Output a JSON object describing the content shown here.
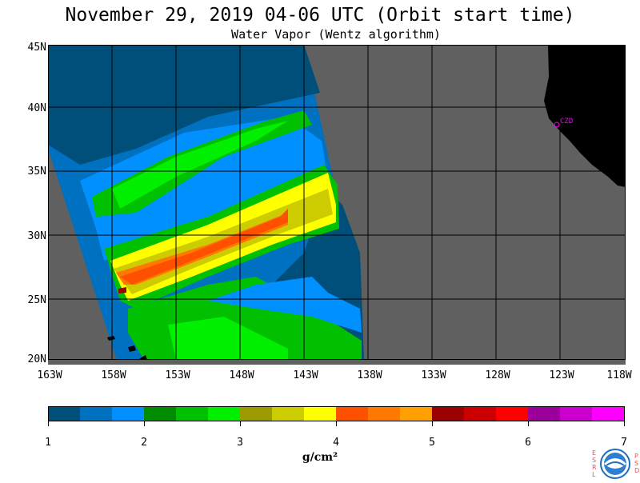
{
  "header": {
    "title": "November 29, 2019  04-06 UTC  (Orbit start time)",
    "subtitle": "Water Vapor (Wentz algorithm)"
  },
  "map": {
    "latitude_labels": [
      "45N",
      "40N",
      "35N",
      "30N",
      "25N",
      "20N"
    ],
    "longitude_labels": [
      "163W",
      "158W",
      "153W",
      "148W",
      "143W",
      "138W",
      "133W",
      "128W",
      "123W",
      "118W"
    ],
    "station_label": "CZD",
    "land_color": "#000000",
    "no_data_color": "#606060",
    "grid_color": "#000000"
  },
  "colorbar": {
    "tick_labels": [
      "1",
      "2",
      "3",
      "4",
      "5",
      "6",
      "7"
    ],
    "unit": "g/cm²",
    "colors": [
      "#004f7a",
      "#0070c0",
      "#0090ff",
      "#008c00",
      "#00c000",
      "#00f000",
      "#9c9c00",
      "#cccc00",
      "#ffff00",
      "#ff5000",
      "#ff7800",
      "#ffa000",
      "#9c0000",
      "#cc0000",
      "#ff0000",
      "#9c009c",
      "#cc00cc",
      "#ff00ff"
    ]
  },
  "logo": {
    "name": "NOAA",
    "left_letters": [
      "E",
      "S",
      "R",
      "L"
    ],
    "right_letters": [
      "P",
      "S",
      "D"
    ]
  }
}
